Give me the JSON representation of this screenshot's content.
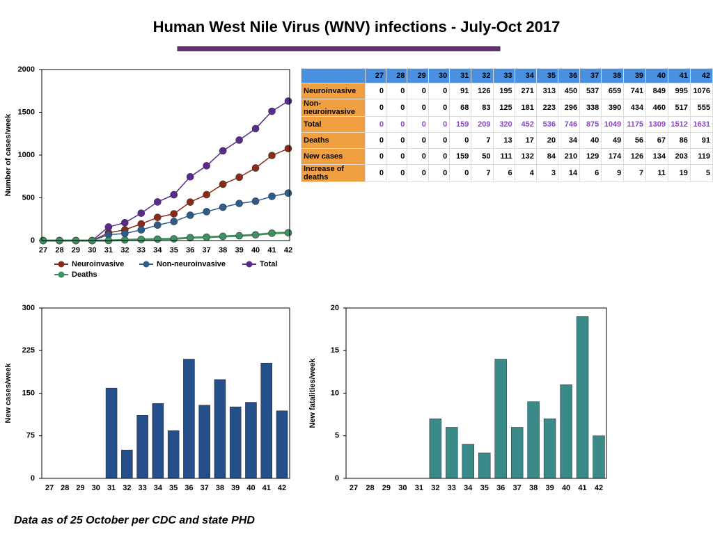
{
  "title": "Human West Nile Virus (WNV) infections - July-Oct 2017",
  "footnote": "Data as of 25 October per CDC and state PHD",
  "table": {
    "row_labels": [
      "Neuroinvasive",
      "Non-neuroinvasive",
      "Total",
      "Deaths",
      "New cases",
      "Increase of deaths"
    ]
  },
  "chart_data": [
    {
      "type": "line",
      "y_label": "Number of cases/week",
      "categories": [
        27,
        28,
        29,
        30,
        31,
        32,
        33,
        34,
        35,
        36,
        37,
        38,
        39,
        40,
        41,
        42
      ],
      "ylim": [
        0,
        2000
      ],
      "yticks": [
        0,
        500,
        1000,
        1500,
        2000
      ],
      "grid": false,
      "series": [
        {
          "name": "Neuroinvasive",
          "color": "#8c2a18",
          "values": [
            0,
            0,
            0,
            0,
            91,
            126,
            195,
            271,
            313,
            450,
            537,
            659,
            741,
            849,
            995,
            1076
          ]
        },
        {
          "name": "Non-neuroinvasive",
          "color": "#2d5b8c",
          "values": [
            0,
            0,
            0,
            0,
            68,
            83,
            125,
            181,
            223,
            296,
            338,
            390,
            434,
            460,
            517,
            555
          ]
        },
        {
          "name": "Total",
          "color": "#5a2a8c",
          "values": [
            0,
            0,
            0,
            0,
            159,
            209,
            320,
            452,
            536,
            746,
            875,
            1049,
            1175,
            1309,
            1512,
            1631
          ]
        },
        {
          "name": "Deaths",
          "color": "#3f9060",
          "values": [
            0,
            0,
            0,
            0,
            0,
            7,
            13,
            17,
            20,
            34,
            40,
            49,
            56,
            67,
            86,
            91
          ]
        }
      ]
    },
    {
      "type": "bar",
      "y_label": "New cases/week",
      "color": "#244f8a",
      "categories": [
        27,
        28,
        29,
        30,
        31,
        32,
        33,
        34,
        35,
        36,
        37,
        38,
        39,
        40,
        41,
        42
      ],
      "values": [
        0,
        0,
        0,
        0,
        159,
        50,
        111,
        132,
        84,
        210,
        129,
        174,
        126,
        134,
        203,
        119
      ],
      "ylim": [
        0,
        300
      ],
      "yticks": [
        0,
        75,
        150,
        225,
        300
      ],
      "grid": false
    },
    {
      "type": "bar",
      "y_label": "New fatalities/week",
      "color": "#3a8a8a",
      "categories": [
        27,
        28,
        29,
        30,
        31,
        32,
        33,
        34,
        35,
        36,
        37,
        38,
        39,
        40,
        41,
        42
      ],
      "values": [
        0,
        0,
        0,
        0,
        0,
        7,
        6,
        4,
        3,
        14,
        6,
        9,
        7,
        11,
        19,
        5
      ],
      "ylim": [
        0,
        20
      ],
      "yticks": [
        0,
        5,
        10,
        15,
        20
      ],
      "grid": false
    }
  ]
}
